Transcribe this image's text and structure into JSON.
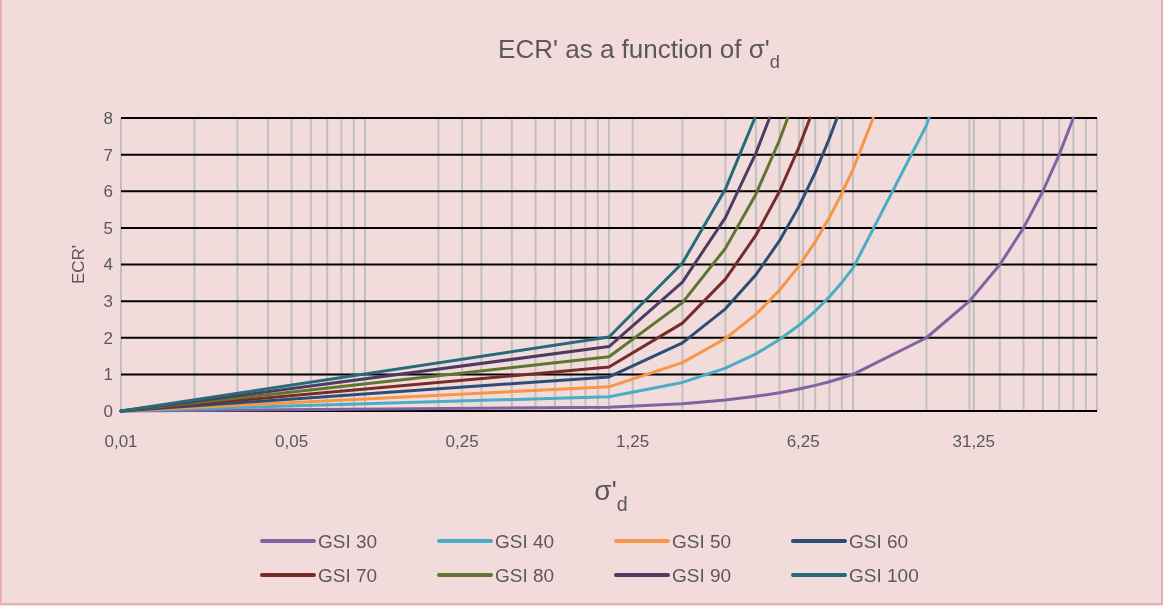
{
  "chart_data": {
    "type": "line",
    "title": "ECR' as a function of σ'$_{d}$",
    "xlabel": "σ'$_{d}$",
    "ylabel": "ECR'",
    "log": "x",
    "grid": true,
    "legend": "bottom",
    "line_style": "solid",
    "marker": "none",
    "xlim": [
      0.01,
      100
    ],
    "ylim": [
      0,
      8
    ],
    "yticks": [
      0,
      1,
      2,
      3,
      4,
      5,
      6,
      7,
      8
    ],
    "xticks": [
      {
        "value": 0.01,
        "label": "0,01"
      },
      {
        "value": 0.05,
        "label": "0,05"
      },
      {
        "value": 0.25,
        "label": "0,25"
      },
      {
        "value": 1.25,
        "label": "1,25"
      },
      {
        "value": 6.25,
        "label": "6,25"
      },
      {
        "value": 31.25,
        "label": "31,25"
      },
      {
        "value": 0.02,
        "label": null
      },
      {
        "value": 0.03,
        "label": null
      },
      {
        "value": 0.04,
        "label": null
      },
      {
        "value": 0.06,
        "label": null
      },
      {
        "value": 0.07,
        "label": null
      },
      {
        "value": 0.08,
        "label": null
      },
      {
        "value": 0.09,
        "label": null
      },
      {
        "value": 0.1,
        "label": null
      },
      {
        "value": 0.2,
        "label": null
      },
      {
        "value": 0.3,
        "label": null
      },
      {
        "value": 0.4,
        "label": null
      },
      {
        "value": 0.5,
        "label": null
      },
      {
        "value": 0.6,
        "label": null
      },
      {
        "value": 0.7,
        "label": null
      },
      {
        "value": 0.8,
        "label": null
      },
      {
        "value": 0.9,
        "label": null
      },
      {
        "value": 1,
        "label": null
      },
      {
        "value": 2,
        "label": null
      },
      {
        "value": 3,
        "label": null
      },
      {
        "value": 4,
        "label": null
      },
      {
        "value": 5,
        "label": null
      },
      {
        "value": 6,
        "label": null
      },
      {
        "value": 7,
        "label": null
      },
      {
        "value": 8,
        "label": null
      },
      {
        "value": 9,
        "label": null
      },
      {
        "value": 10,
        "label": null
      },
      {
        "value": 20,
        "label": null
      },
      {
        "value": 30,
        "label": null
      },
      {
        "value": 40,
        "label": null
      },
      {
        "value": 50,
        "label": null
      },
      {
        "value": 60,
        "label": null
      },
      {
        "value": 70,
        "label": null
      },
      {
        "value": 80,
        "label": null
      },
      {
        "value": 90,
        "label": null
      },
      {
        "value": 100,
        "label": null
      }
    ],
    "series": [
      {
        "name": "GSI 30",
        "color": "#8064a2",
        "x": [
          0.01,
          1,
          2,
          3,
          4,
          5,
          6,
          7,
          8,
          9,
          10,
          20,
          30,
          40,
          50,
          60,
          70,
          80
        ],
        "values": [
          0,
          0.1,
          0.2,
          0.3,
          0.4,
          0.5,
          0.6,
          0.7,
          0.8,
          0.9,
          1,
          2,
          3,
          4,
          5,
          6,
          7,
          8
        ]
      },
      {
        "name": "GSI 40",
        "color": "#4bacc6",
        "x": [
          0.01,
          1,
          2,
          3,
          4,
          5,
          6,
          7,
          8,
          9,
          10,
          20,
          20.5
        ],
        "values": [
          0,
          0.39,
          0.78,
          1.17,
          1.56,
          1.95,
          2.34,
          2.73,
          3.12,
          3.51,
          3.9,
          7.8,
          8
        ]
      },
      {
        "name": "GSI 50",
        "color": "#f79646",
        "x": [
          0.01,
          1,
          2,
          3,
          4,
          5,
          6,
          7,
          8,
          9,
          10,
          12.1
        ],
        "values": [
          0,
          0.66,
          1.32,
          1.98,
          2.64,
          3.3,
          3.96,
          4.62,
          5.28,
          5.94,
          6.6,
          8
        ]
      },
      {
        "name": "GSI 60",
        "color": "#2c4d75",
        "x": [
          0.01,
          1,
          2,
          3,
          4,
          5,
          6,
          7,
          8,
          8.6
        ],
        "values": [
          0,
          0.93,
          1.86,
          2.79,
          3.72,
          4.65,
          5.58,
          6.51,
          7.44,
          8
        ]
      },
      {
        "name": "GSI 70",
        "color": "#772c2a",
        "x": [
          0.01,
          1,
          2,
          3,
          4,
          5,
          6,
          6.67
        ],
        "values": [
          0,
          1.2,
          2.4,
          3.6,
          4.8,
          6,
          7.2,
          8
        ]
      },
      {
        "name": "GSI 80",
        "color": "#5f7530",
        "x": [
          0.01,
          1,
          2,
          3,
          4,
          5,
          5.4
        ],
        "values": [
          0,
          1.48,
          2.96,
          4.44,
          5.92,
          7.4,
          8
        ]
      },
      {
        "name": "GSI 90",
        "color": "#4d3b62",
        "x": [
          0.01,
          1,
          2,
          3,
          4,
          4.55
        ],
        "values": [
          0,
          1.76,
          3.52,
          5.28,
          7.04,
          8
        ]
      },
      {
        "name": "GSI 100",
        "color": "#276a7c",
        "x": [
          0.01,
          1,
          2,
          3,
          3.96
        ],
        "values": [
          0,
          2.02,
          4.04,
          6.06,
          8
        ]
      }
    ]
  }
}
